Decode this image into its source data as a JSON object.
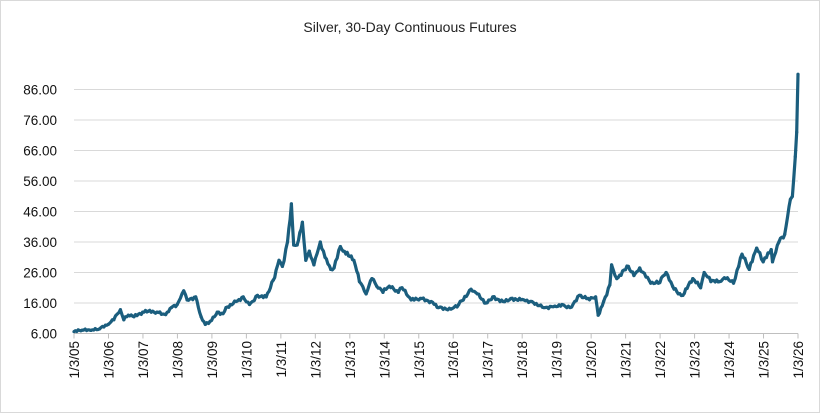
{
  "chart_data": {
    "type": "line",
    "title": "Silver, 30-Day Continuous Futures",
    "xlabel": "",
    "ylabel": "",
    "ylim": [
      6,
      91.6
    ],
    "xlim": [
      "2005-01-03",
      "2026-01-03"
    ],
    "grid": "horizontal",
    "legend": "none",
    "line_color": "#1b5e7e",
    "y_ticks": [
      "6.00",
      "16.00",
      "26.00",
      "36.00",
      "46.00",
      "56.00",
      "66.00",
      "76.00",
      "86.00"
    ],
    "x_ticks": [
      "1/3/05",
      "1/3/06",
      "1/3/07",
      "1/3/08",
      "1/3/09",
      "1/3/10",
      "1/3/11",
      "1/3/12",
      "1/3/13",
      "1/3/14",
      "1/3/15",
      "1/3/16",
      "1/3/17",
      "1/3/18",
      "1/3/19",
      "1/3/20",
      "1/3/21",
      "1/3/22",
      "1/3/23",
      "1/3/24",
      "1/3/25",
      "1/3/26"
    ],
    "series": [
      {
        "x": [
          "2005-01-03",
          "2005-04-01",
          "2005-07-01",
          "2005-10-01",
          "2006-01-01",
          "2006-03-01",
          "2006-05-10",
          "2006-06-15",
          "2006-08-01",
          "2006-10-01",
          "2007-01-01",
          "2007-03-01",
          "2007-06-01",
          "2007-09-01",
          "2007-11-01",
          "2008-01-01",
          "2008-03-10",
          "2008-04-15",
          "2008-07-15",
          "2008-09-10",
          "2008-10-25",
          "2008-12-15",
          "2009-03-01",
          "2009-05-01",
          "2009-06-01",
          "2009-09-15",
          "2009-12-01",
          "2010-02-05",
          "2010-05-01",
          "2010-08-01",
          "2010-10-15",
          "2010-12-15",
          "2011-01-20",
          "2011-03-15",
          "2011-04-25",
          "2011-05-20",
          "2011-06-25",
          "2011-08-20",
          "2011-09-25",
          "2011-11-01",
          "2011-12-20",
          "2012-02-25",
          "2012-04-15",
          "2012-06-15",
          "2012-07-20",
          "2012-09-25",
          "2012-10-25",
          "2012-12-20",
          "2013-02-15",
          "2013-04-15",
          "2013-06-25",
          "2013-08-25",
          "2013-10-15",
          "2013-12-20",
          "2014-02-25",
          "2014-06-01",
          "2014-07-10",
          "2014-10-15",
          "2015-01-20",
          "2015-05-15",
          "2015-08-01",
          "2015-12-10",
          "2016-03-01",
          "2016-07-10",
          "2016-09-15",
          "2016-12-15",
          "2017-02-25",
          "2017-06-15",
          "2017-09-05",
          "2018-01-20",
          "2018-04-15",
          "2018-08-20",
          "2018-12-15",
          "2019-03-01",
          "2019-05-25",
          "2019-09-01",
          "2019-12-01",
          "2020-02-20",
          "2020-03-18",
          "2020-05-15",
          "2020-07-20",
          "2020-08-07",
          "2020-10-01",
          "2021-02-01",
          "2021-04-01",
          "2021-06-01",
          "2021-09-25",
          "2021-12-15",
          "2022-03-08",
          "2022-05-15",
          "2022-07-15",
          "2022-09-01",
          "2022-12-15",
          "2023-03-08",
          "2023-04-15",
          "2023-06-25",
          "2023-09-25",
          "2023-12-01",
          "2024-02-20",
          "2024-04-15",
          "2024-05-20",
          "2024-08-05",
          "2024-10-22",
          "2024-12-30",
          "2025-03-25",
          "2025-04-08",
          "2025-06-15",
          "2025-08-15",
          "2025-10-15",
          "2025-11-05",
          "2025-12-05",
          "2025-12-20",
          "2026-01-03"
        ],
        "y": [
          6.6,
          7.1,
          7.0,
          7.5,
          9.0,
          10.5,
          13.8,
          10.5,
          12.0,
          11.5,
          13.0,
          13.3,
          13.0,
          12.2,
          14.5,
          15.5,
          20.0,
          17.0,
          18.0,
          11.5,
          9.0,
          10.0,
          13.0,
          12.5,
          14.5,
          16.5,
          18.0,
          15.5,
          18.5,
          18.0,
          23.5,
          30.0,
          28.0,
          36.0,
          48.5,
          35.0,
          35.0,
          42.5,
          30.0,
          33.0,
          28.5,
          36.0,
          31.0,
          27.0,
          27.5,
          34.5,
          33.0,
          31.5,
          30.0,
          23.0,
          19.0,
          24.0,
          21.5,
          19.5,
          21.5,
          19.5,
          21.0,
          17.0,
          17.5,
          16.5,
          14.5,
          14.0,
          15.5,
          20.5,
          19.0,
          16.0,
          18.0,
          16.5,
          17.5,
          17.0,
          16.5,
          14.5,
          15.0,
          15.5,
          14.5,
          18.5,
          17.5,
          18.0,
          12.0,
          16.5,
          22.0,
          28.5,
          24.0,
          28.0,
          25.0,
          27.5,
          22.5,
          22.5,
          26.0,
          21.5,
          19.0,
          18.5,
          24.0,
          21.0,
          26.0,
          23.0,
          23.0,
          24.0,
          22.5,
          28.0,
          32.0,
          27.0,
          34.0,
          29.5,
          33.5,
          29.5,
          36.0,
          38.5,
          50.0,
          51.0,
          64.0,
          72.0,
          91.0
        ]
      }
    ]
  }
}
